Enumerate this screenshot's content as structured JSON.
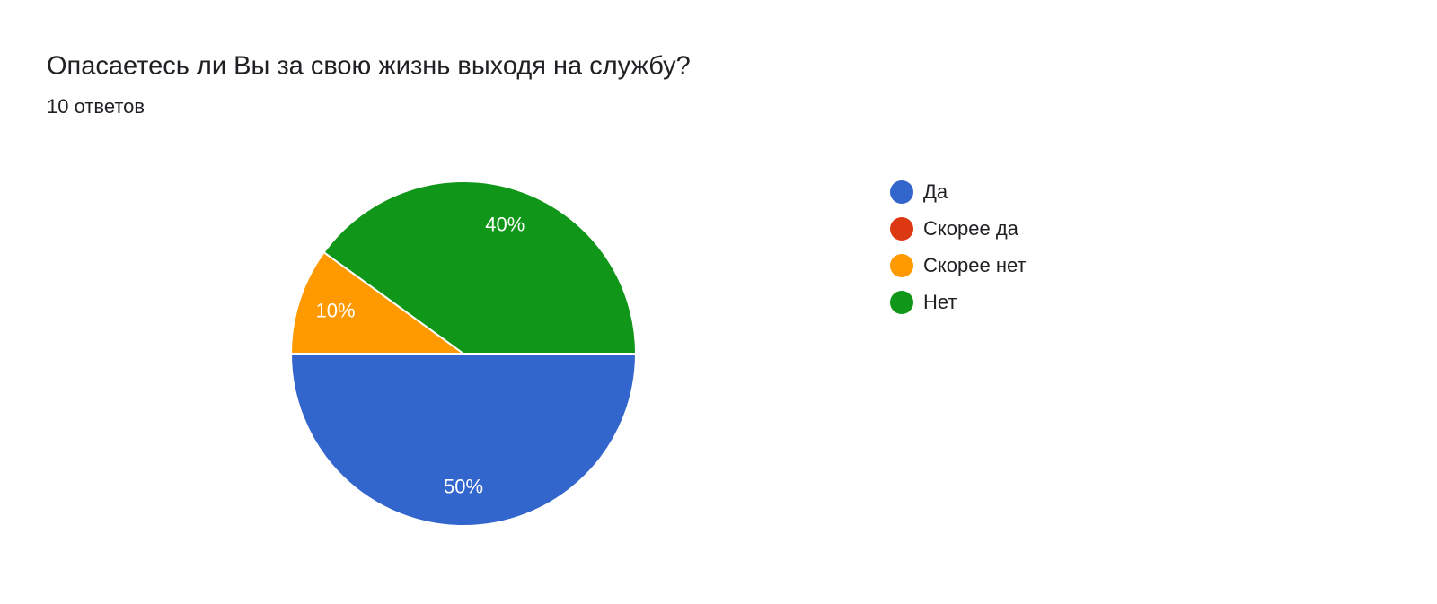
{
  "chart_data": {
    "type": "pie",
    "title": "Опасаетесь ли Вы за свою жизнь выходя на службу?",
    "subtitle": "10 ответов",
    "categories": [
      "Да",
      "Скорее да",
      "Скорее нет",
      "Нет"
    ],
    "values": [
      50,
      0,
      10,
      40
    ],
    "value_labels": [
      "50%",
      null,
      "10%",
      "40%"
    ],
    "colors": [
      "#3366cc",
      "#dc3912",
      "#ff9900",
      "#109618"
    ],
    "legend": "right"
  }
}
